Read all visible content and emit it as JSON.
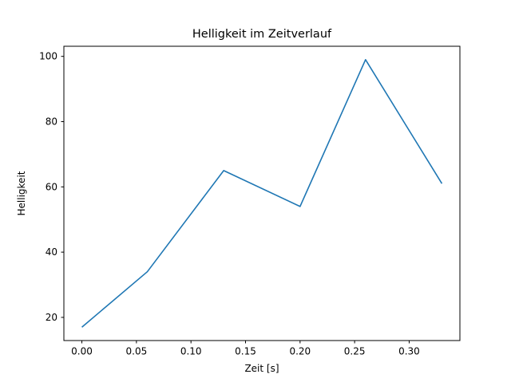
{
  "chart_data": {
    "type": "line",
    "title": "Helligkeit im Zeitverlauf",
    "xlabel": "Zeit [s]",
    "ylabel": "Helligkeit",
    "x": [
      0.0,
      0.06,
      0.13,
      0.2,
      0.26,
      0.33
    ],
    "y": [
      17,
      34,
      65,
      54,
      99,
      61
    ],
    "xlim": [
      -0.0165,
      0.3465
    ],
    "ylim": [
      12.9,
      103.1
    ],
    "xticks": [
      0.0,
      0.05,
      0.1,
      0.15,
      0.2,
      0.25,
      0.3
    ],
    "xtick_labels": [
      "0.00",
      "0.05",
      "0.10",
      "0.15",
      "0.20",
      "0.25",
      "0.30"
    ],
    "yticks": [
      20,
      40,
      60,
      80,
      100
    ],
    "ytick_labels": [
      "20",
      "40",
      "60",
      "80",
      "100"
    ],
    "line_color": "#1f77b4",
    "axis_color": "#000000",
    "background_color": "#ffffff",
    "grid": false,
    "legend": null
  }
}
